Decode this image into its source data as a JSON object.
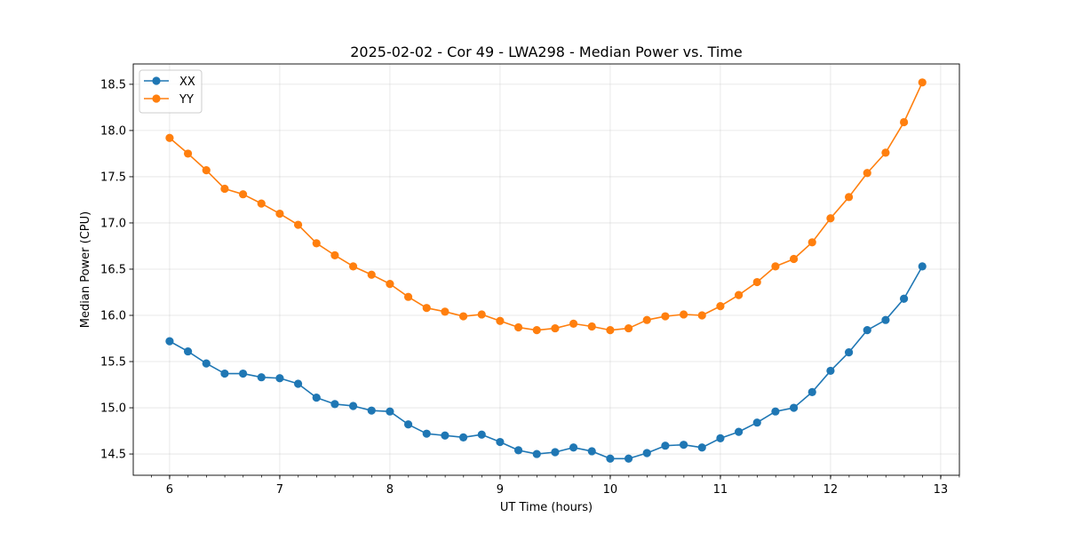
{
  "chart_data": {
    "type": "line",
    "title": "2025-02-02 - Cor 49 - LWA298 - Median Power vs. Time",
    "xlabel": "UT Time (hours)",
    "ylabel": "Median Power (CPU)",
    "xlim": [
      5.67,
      13.17
    ],
    "ylim": [
      14.27,
      18.72
    ],
    "x_ticks": [
      6,
      7,
      8,
      9,
      10,
      11,
      12,
      13
    ],
    "y_ticks": [
      14.5,
      15.0,
      15.5,
      16.0,
      16.5,
      17.0,
      17.5,
      18.0,
      18.5
    ],
    "y_tick_labels": [
      "14.5",
      "15.0",
      "15.5",
      "16.0",
      "16.5",
      "17.0",
      "17.5",
      "18.0",
      "18.5"
    ],
    "x_minor_step": 0.1667,
    "grid": true,
    "legend_position": "top-left",
    "x": [
      6.0,
      6.1667,
      6.3333,
      6.5,
      6.6667,
      6.8333,
      7.0,
      7.1667,
      7.3333,
      7.5,
      7.6667,
      7.8333,
      8.0,
      8.1667,
      8.3333,
      8.5,
      8.6667,
      8.8333,
      9.0,
      9.1667,
      9.3333,
      9.5,
      9.6667,
      9.8333,
      10.0,
      10.1667,
      10.3333,
      10.5,
      10.6667,
      10.8333,
      11.0,
      11.1667,
      11.3333,
      11.5,
      11.6667,
      11.8333,
      12.0,
      12.1667,
      12.3333,
      12.5,
      12.6667,
      12.8333
    ],
    "series": [
      {
        "name": "XX",
        "color": "#1f77b4",
        "values": [
          15.72,
          15.61,
          15.48,
          15.37,
          15.37,
          15.33,
          15.32,
          15.26,
          15.11,
          15.04,
          15.02,
          14.97,
          14.96,
          14.82,
          14.72,
          14.7,
          14.68,
          14.71,
          14.63,
          14.54,
          14.5,
          14.52,
          14.57,
          14.53,
          14.45,
          14.45,
          14.51,
          14.59,
          14.6,
          14.57,
          14.67,
          14.74,
          14.84,
          14.96,
          15.0,
          15.17,
          15.4,
          15.6,
          15.84,
          15.95,
          16.18,
          16.53
        ]
      },
      {
        "name": "YY",
        "color": "#ff7f0e",
        "values": [
          17.92,
          17.75,
          17.57,
          17.37,
          17.31,
          17.21,
          17.1,
          16.98,
          16.78,
          16.65,
          16.53,
          16.44,
          16.34,
          16.2,
          16.08,
          16.04,
          15.99,
          16.01,
          15.94,
          15.87,
          15.84,
          15.86,
          15.91,
          15.88,
          15.84,
          15.86,
          15.95,
          15.99,
          16.01,
          16.0,
          16.1,
          16.22,
          16.36,
          16.53,
          16.61,
          16.79,
          17.05,
          17.28,
          17.54,
          17.76,
          18.09,
          18.52
        ]
      }
    ]
  }
}
